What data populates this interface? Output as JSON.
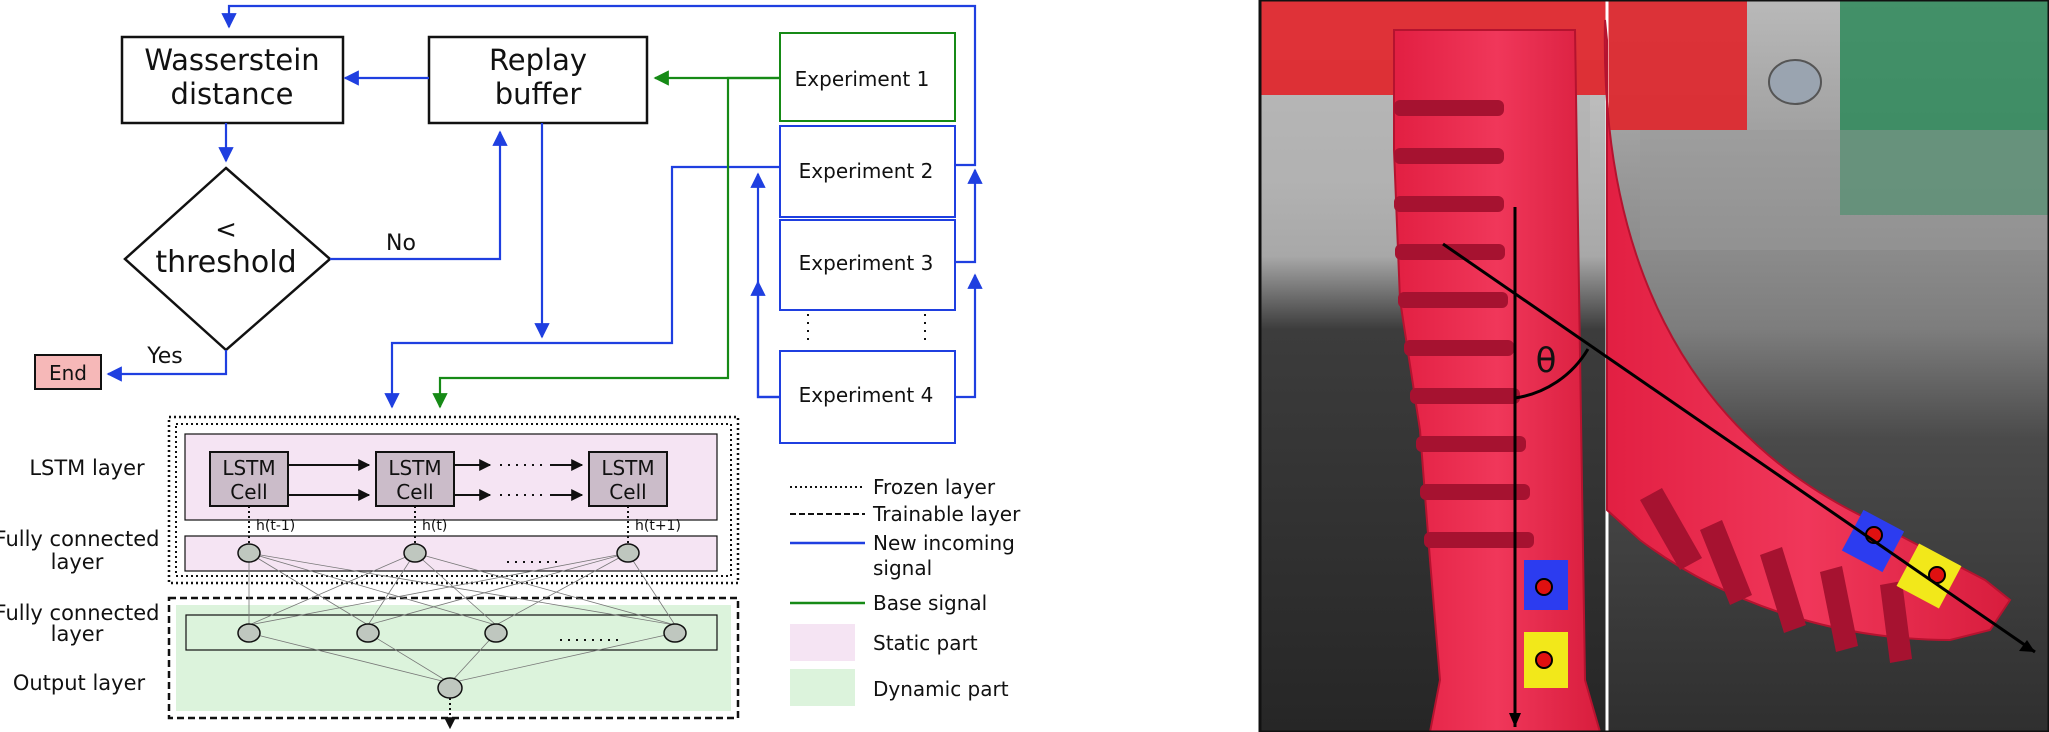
{
  "flow": {
    "wasserstein": [
      "Wasserstein",
      "distance"
    ],
    "replay": [
      "Replay",
      "buffer"
    ],
    "threshold": [
      "<",
      "threshold"
    ],
    "no": "No",
    "yes": "Yes",
    "end": "End",
    "experiments": [
      "Experiment 1",
      "Experiment 2",
      "Experiment 3",
      "Experiment 4"
    ]
  },
  "network": {
    "row_labels": {
      "lstm": "LSTM layer",
      "fc1": [
        "Fully connected",
        "layer"
      ],
      "fc2": [
        "Fully connected",
        "layer"
      ],
      "output": "Output layer"
    },
    "cell_label": [
      "LSTM",
      "Cell"
    ],
    "hidden_labels": [
      "h(t-1)",
      "h(t)",
      "h(t+1)"
    ]
  },
  "legend": {
    "frozen": "Frozen layer",
    "trainable": "Trainable layer",
    "new_signal": [
      "New incoming",
      "signal"
    ],
    "base_signal": "Base signal",
    "static": "Static part",
    "dynamic": "Dynamic part"
  },
  "photo": {
    "angle_label": "θ"
  },
  "colors": {
    "blue_signal": "#1f3fe0",
    "green_signal": "#168a16",
    "static_fill": "#f5e4f3",
    "dynamic_fill": "#dcf3dc",
    "end_fill": "#f6b8b8",
    "lstm_cell_fill": "#cbbcc9"
  }
}
